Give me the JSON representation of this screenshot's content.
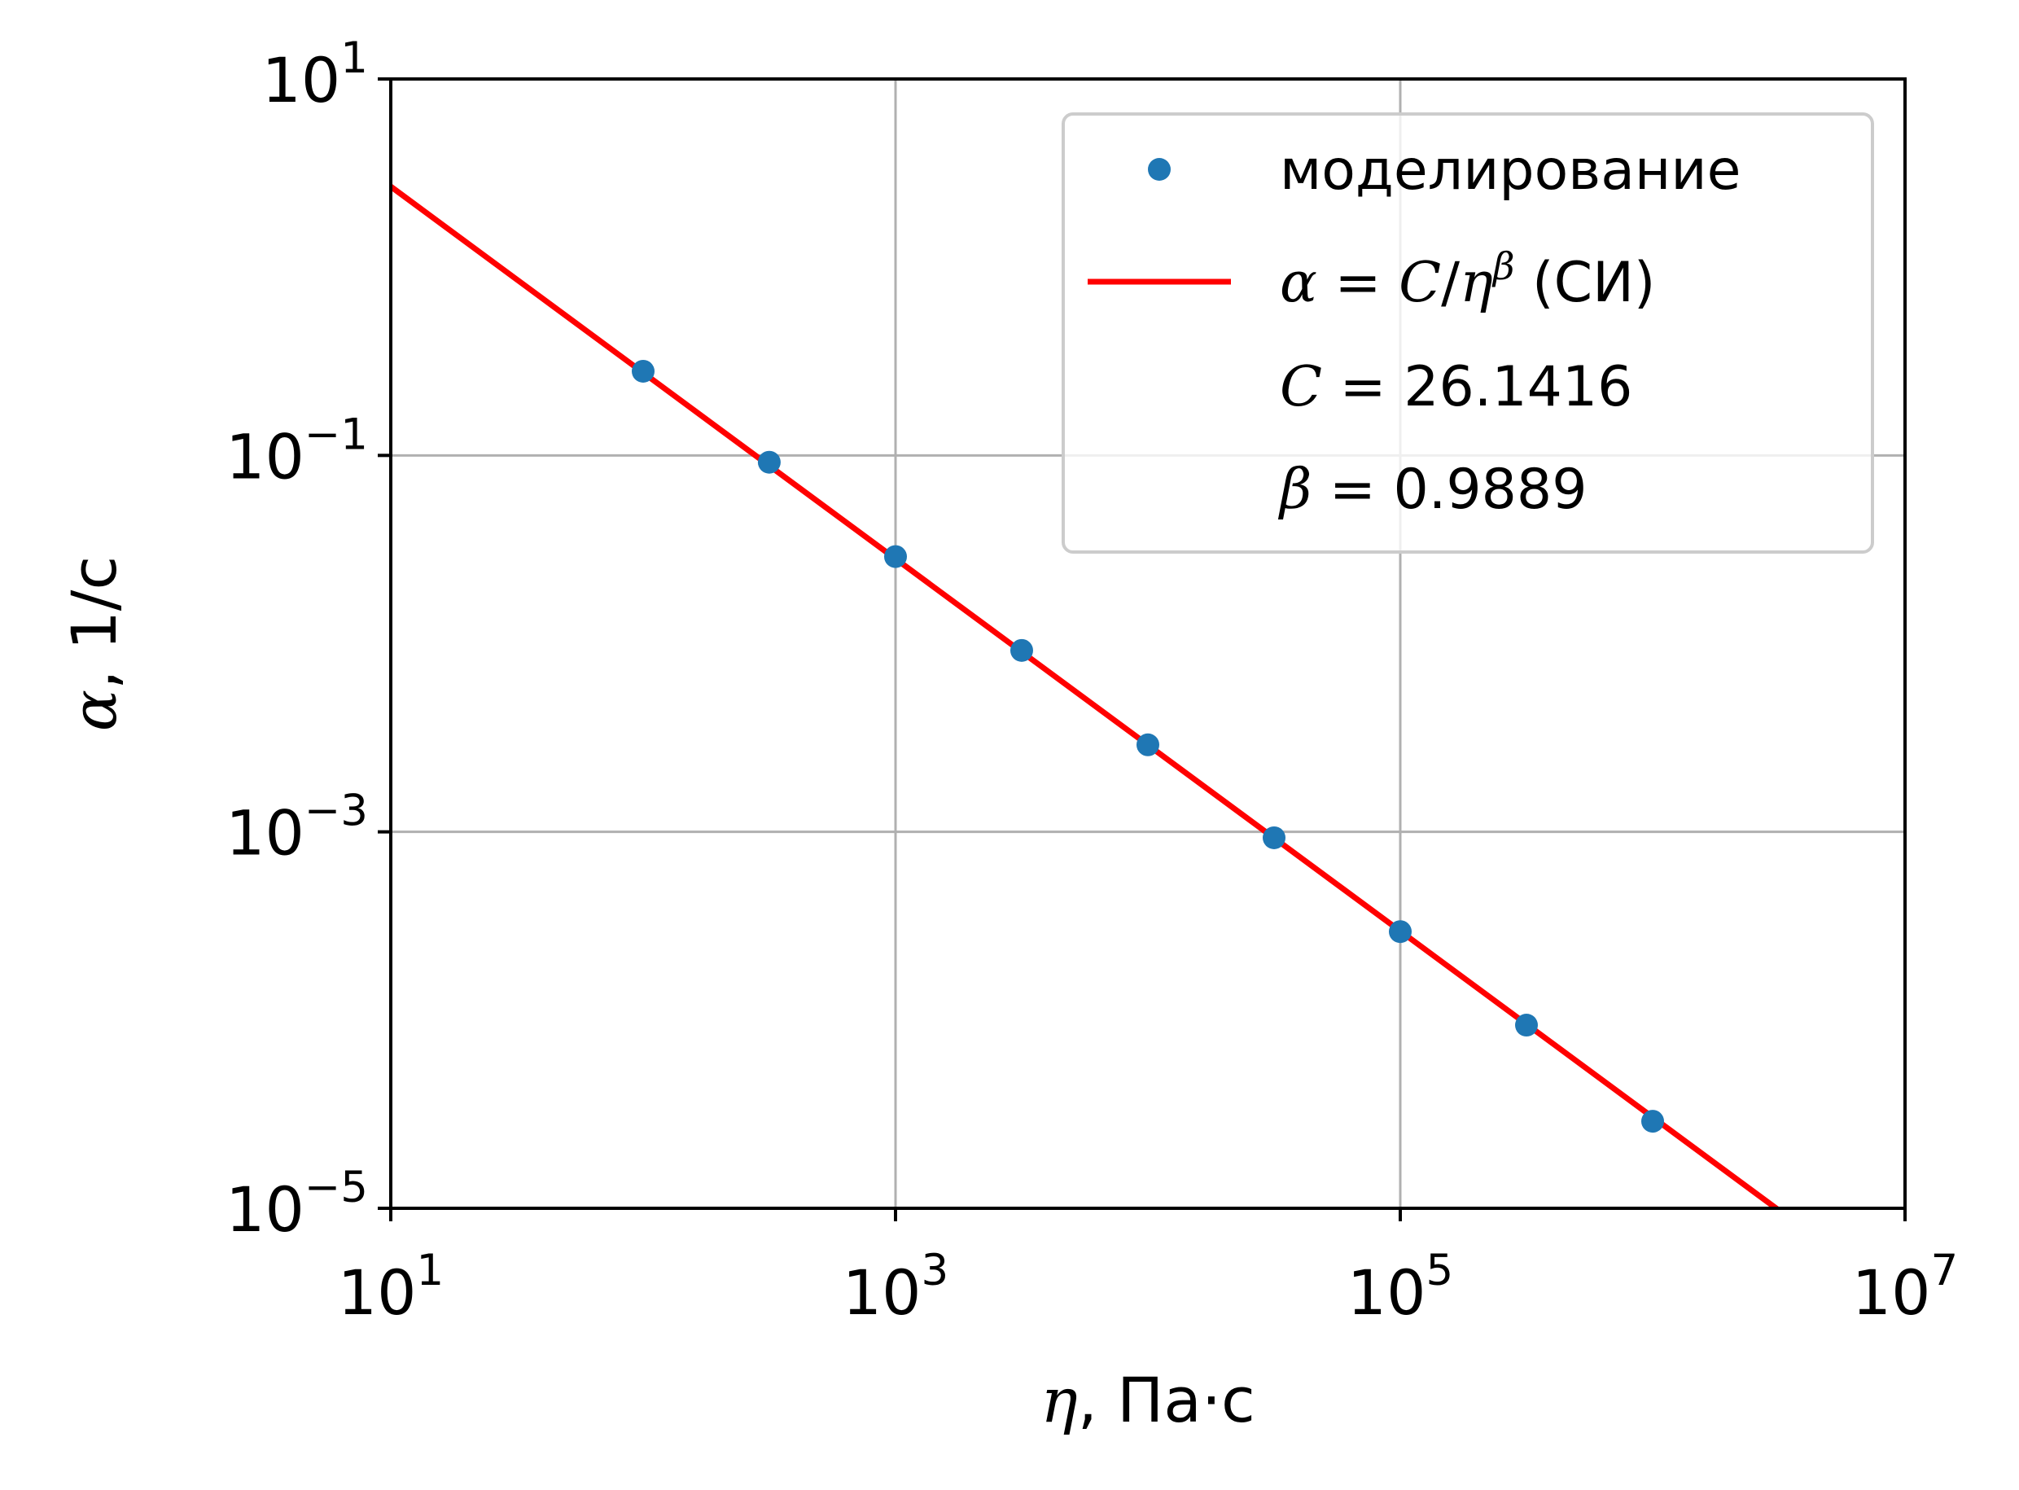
{
  "chart_data": {
    "type": "scatter",
    "x_scale": "log",
    "y_scale": "log",
    "xlim": [
      10,
      10000000
    ],
    "ylim": [
      1e-05,
      10
    ],
    "grid": true,
    "legend_position": "top-right",
    "xlabel": {
      "var": "η",
      "unit": ", Па·с"
    },
    "ylabel": {
      "var": "α",
      "unit": ", 1/с"
    },
    "x_ticks": [
      {
        "base": "10",
        "exp": "1",
        "value": 10
      },
      {
        "base": "10",
        "exp": "3",
        "value": 1000
      },
      {
        "base": "10",
        "exp": "5",
        "value": 100000
      },
      {
        "base": "10",
        "exp": "7",
        "value": 10000000
      }
    ],
    "y_ticks": [
      {
        "base": "10",
        "exp": "1",
        "value": 10
      },
      {
        "base": "10",
        "exp": "−1",
        "value": 0.1
      },
      {
        "base": "10",
        "exp": "−3",
        "value": 0.001
      },
      {
        "base": "10",
        "exp": "−5",
        "value": 1e-05
      }
    ],
    "series": [
      {
        "name": "моделирование",
        "kind": "points",
        "color": "#1f77b4",
        "x": [
          100,
          316,
          1000,
          3162,
          10000,
          31623,
          100000,
          316228,
          1000000
        ],
        "y": [
          0.28,
          0.092,
          0.029,
          0.0092,
          0.0029,
          0.00093,
          0.000295,
          9.4e-05,
          2.9e-05
        ]
      },
      {
        "name": "α = C/η^β (СИ)",
        "kind": "line",
        "color": "#ff0000",
        "C": 26.1416,
        "beta": 0.9889
      }
    ],
    "legend": {
      "points_label": "моделирование",
      "fit_label": {
        "alpha": "α",
        "eq": " = ",
        "C": "C",
        "slash": "/",
        "eta": "η",
        "beta": "β",
        "suffix": " (СИ)"
      },
      "c_label": {
        "sym": "C",
        "text": " = 26.1416"
      },
      "beta_label": {
        "sym": "β",
        "text": " = 0.9889"
      }
    }
  }
}
